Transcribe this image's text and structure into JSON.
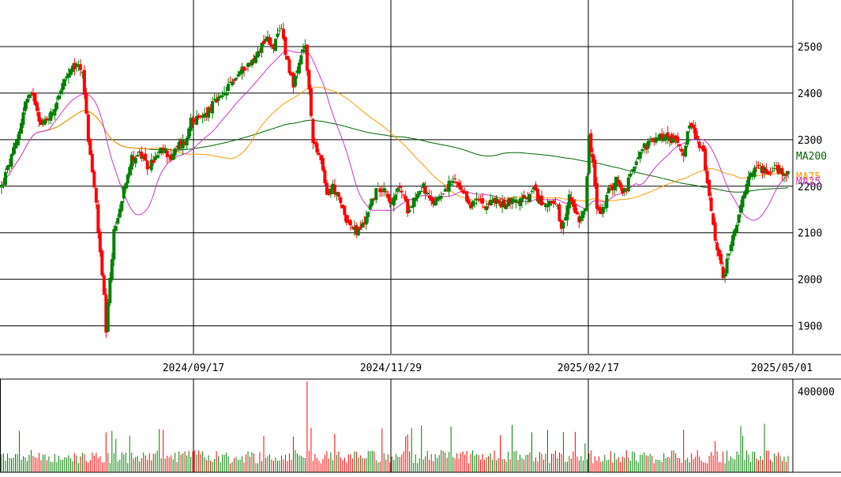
{
  "chart_data": [
    {
      "type": "candlestick",
      "title": "",
      "ylim": [
        1840,
        2600
      ],
      "y_ticks": [
        1900,
        2000,
        2100,
        2200,
        2300,
        2400,
        2500
      ],
      "x_ticks": [
        "2024/09/17",
        "2024/11/29",
        "2025/02/17",
        "2025/05/01"
      ],
      "grid": true,
      "legend": [
        {
          "name": "MA200",
          "color": "#006400"
        },
        {
          "name": "MA75",
          "color": "#ff9900"
        },
        {
          "name": "MA25",
          "color": "#cc33cc"
        }
      ],
      "up_color": "#008000",
      "down_color": "#ff0000",
      "keyframes": [
        [
          0,
          2200
        ],
        [
          4,
          2250
        ],
        [
          8,
          2300
        ],
        [
          12,
          2380
        ],
        [
          16,
          2400
        ],
        [
          20,
          2330
        ],
        [
          26,
          2360
        ],
        [
          30,
          2410
        ],
        [
          34,
          2440
        ],
        [
          38,
          2460
        ],
        [
          41,
          2450
        ],
        [
          44,
          2300
        ],
        [
          48,
          2160
        ],
        [
          50,
          2050
        ],
        [
          52,
          1960
        ],
        [
          53,
          1880
        ],
        [
          55,
          2000
        ],
        [
          57,
          2100
        ],
        [
          60,
          2150
        ],
        [
          62,
          2200
        ],
        [
          64,
          2230
        ],
        [
          66,
          2260
        ],
        [
          70,
          2270
        ],
        [
          74,
          2240
        ],
        [
          78,
          2260
        ],
        [
          82,
          2280
        ],
        [
          86,
          2260
        ],
        [
          90,
          2290
        ],
        [
          94,
          2300
        ],
        [
          96,
          2350
        ],
        [
          100,
          2340
        ],
        [
          104,
          2360
        ],
        [
          108,
          2380
        ],
        [
          112,
          2390
        ],
        [
          116,
          2420
        ],
        [
          120,
          2440
        ],
        [
          124,
          2460
        ],
        [
          128,
          2470
        ],
        [
          130,
          2490
        ],
        [
          134,
          2520
        ],
        [
          138,
          2500
        ],
        [
          140,
          2520
        ],
        [
          142,
          2540
        ],
        [
          144,
          2490
        ],
        [
          146,
          2450
        ],
        [
          148,
          2420
        ],
        [
          150,
          2440
        ],
        [
          152,
          2480
        ],
        [
          154,
          2500
        ],
        [
          156,
          2400
        ],
        [
          158,
          2300
        ],
        [
          160,
          2280
        ],
        [
          162,
          2250
        ],
        [
          165,
          2180
        ],
        [
          168,
          2200
        ],
        [
          172,
          2160
        ],
        [
          176,
          2120
        ],
        [
          180,
          2100
        ],
        [
          184,
          2120
        ],
        [
          186,
          2150
        ],
        [
          188,
          2170
        ],
        [
          190,
          2190
        ],
        [
          194,
          2200
        ],
        [
          198,
          2160
        ],
        [
          202,
          2200
        ],
        [
          206,
          2150
        ],
        [
          210,
          2180
        ],
        [
          214,
          2200
        ],
        [
          218,
          2160
        ],
        [
          222,
          2180
        ],
        [
          226,
          2200
        ],
        [
          230,
          2210
        ],
        [
          234,
          2180
        ],
        [
          238,
          2160
        ],
        [
          242,
          2170
        ],
        [
          246,
          2160
        ],
        [
          250,
          2170
        ],
        [
          254,
          2160
        ],
        [
          258,
          2170
        ],
        [
          262,
          2170
        ],
        [
          266,
          2170
        ],
        [
          270,
          2190
        ],
        [
          274,
          2160
        ],
        [
          278,
          2170
        ],
        [
          282,
          2150
        ],
        [
          284,
          2100
        ],
        [
          286,
          2130
        ],
        [
          288,
          2180
        ],
        [
          290,
          2160
        ],
        [
          293,
          2130
        ],
        [
          296,
          2160
        ],
        [
          298,
          2300
        ],
        [
          300,
          2250
        ],
        [
          302,
          2150
        ],
        [
          304,
          2140
        ],
        [
          306,
          2160
        ],
        [
          308,
          2190
        ],
        [
          310,
          2200
        ],
        [
          312,
          2220
        ],
        [
          315,
          2180
        ],
        [
          317,
          2200
        ],
        [
          319,
          2220
        ],
        [
          321,
          2250
        ],
        [
          324,
          2280
        ],
        [
          328,
          2290
        ],
        [
          332,
          2300
        ],
        [
          336,
          2310
        ],
        [
          340,
          2300
        ],
        [
          344,
          2290
        ],
        [
          346,
          2270
        ],
        [
          348,
          2320
        ],
        [
          350,
          2330
        ],
        [
          352,
          2310
        ],
        [
          354,
          2290
        ],
        [
          356,
          2270
        ],
        [
          358,
          2200
        ],
        [
          360,
          2150
        ],
        [
          362,
          2090
        ],
        [
          364,
          2050
        ],
        [
          366,
          2000
        ],
        [
          368,
          2040
        ],
        [
          370,
          2080
        ],
        [
          372,
          2100
        ],
        [
          374,
          2140
        ],
        [
          376,
          2170
        ],
        [
          378,
          2200
        ],
        [
          380,
          2230
        ],
        [
          384,
          2240
        ],
        [
          388,
          2230
        ],
        [
          392,
          2240
        ],
        [
          396,
          2230
        ],
        [
          399,
          2230
        ]
      ],
      "ma_periods": {
        "MA25": 25,
        "MA75": 75,
        "MA200": 200
      },
      "volume": {
        "type": "bar",
        "y_ticks": [
          400000
        ],
        "ylim": [
          0,
          420000
        ]
      }
    }
  ]
}
